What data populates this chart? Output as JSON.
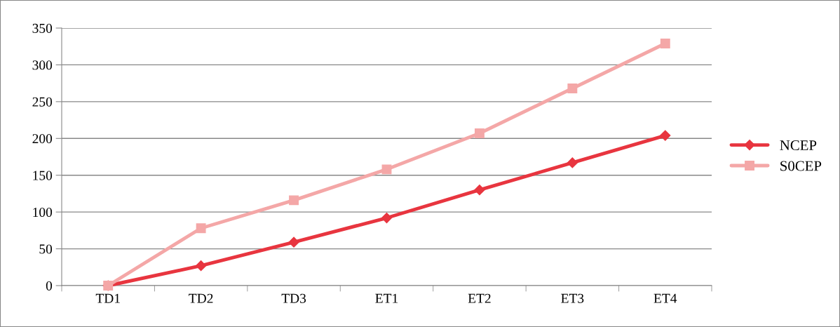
{
  "chart_data": {
    "type": "line",
    "categories": [
      "TD1",
      "TD2",
      "TD3",
      "ET1",
      "ET2",
      "ET3",
      "ET4"
    ],
    "series": [
      {
        "name": "NCEP",
        "color": "#e8353f",
        "marker": "diamond",
        "values": [
          0,
          27,
          59,
          92,
          130,
          167,
          204
        ]
      },
      {
        "name": "S0CEP",
        "color": "#f4a7a7",
        "marker": "square",
        "values": [
          0,
          78,
          116,
          158,
          207,
          268,
          329
        ]
      }
    ],
    "ylim": [
      0,
      350
    ],
    "yticks": [
      0,
      50,
      100,
      150,
      200,
      250,
      300,
      350
    ],
    "grid": "y",
    "legend": "right",
    "line_style": "solid"
  }
}
